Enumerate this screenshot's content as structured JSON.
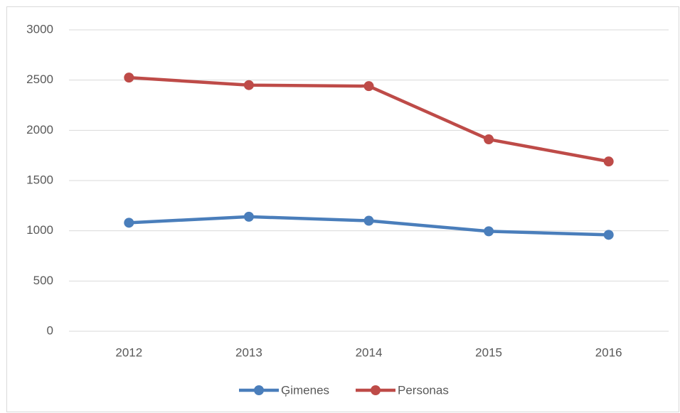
{
  "chart_data": {
    "type": "line",
    "categories": [
      "2012",
      "2013",
      "2014",
      "2015",
      "2016"
    ],
    "series": [
      {
        "name": "Ģimenes",
        "color": "#4a7ebb",
        "values": [
          1080,
          1140,
          1100,
          995,
          960
        ]
      },
      {
        "name": "Personas",
        "color": "#be4b48",
        "values": [
          2525,
          2450,
          2440,
          1910,
          1690
        ]
      }
    ],
    "ylim": [
      0,
      3000
    ],
    "yticks": [
      0,
      500,
      1000,
      1500,
      2000,
      2500,
      3000
    ],
    "grid": true,
    "legend": "bottom"
  }
}
